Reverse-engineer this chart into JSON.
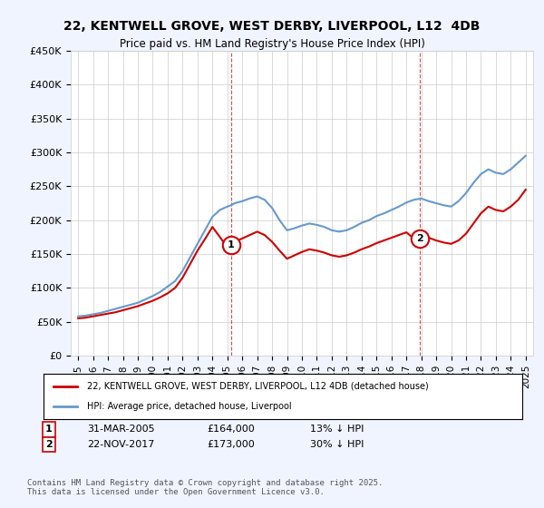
{
  "title": "22, KENTWELL GROVE, WEST DERBY, LIVERPOOL, L12  4DB",
  "subtitle": "Price paid vs. HM Land Registry's House Price Index (HPI)",
  "background_color": "#f0f4ff",
  "plot_background": "#ffffff",
  "red_line_color": "#cc0000",
  "blue_line_color": "#6699cc",
  "ylabel_ticks": [
    "£0",
    "£50K",
    "£100K",
    "£150K",
    "£200K",
    "£250K",
    "£300K",
    "£350K",
    "£400K",
    "£450K"
  ],
  "ytick_vals": [
    0,
    50000,
    100000,
    150000,
    200000,
    250000,
    300000,
    350000,
    400000,
    450000
  ],
  "ylim": [
    0,
    450000
  ],
  "xlim_start": 1994.5,
  "xlim_end": 2025.5,
  "marker1_x": 2005.25,
  "marker1_y": 164000,
  "marker1_label": "1",
  "marker1_date": "31-MAR-2005",
  "marker1_price": "£164,000",
  "marker1_hpi": "13% ↓ HPI",
  "marker2_x": 2017.9,
  "marker2_y": 173000,
  "marker2_label": "2",
  "marker2_date": "22-NOV-2017",
  "marker2_price": "£173,000",
  "marker2_hpi": "30% ↓ HPI",
  "vline1_x": 2005.25,
  "vline2_x": 2017.9,
  "legend_line1": "22, KENTWELL GROVE, WEST DERBY, LIVERPOOL, L12 4DB (detached house)",
  "legend_line2": "HPI: Average price, detached house, Liverpool",
  "footer": "Contains HM Land Registry data © Crown copyright and database right 2025.\nThis data is licensed under the Open Government Licence v3.0.",
  "hpi_blue": {
    "years": [
      1995,
      1995.5,
      1996,
      1996.5,
      1997,
      1997.5,
      1998,
      1998.5,
      1999,
      1999.5,
      2000,
      2000.5,
      2001,
      2001.5,
      2002,
      2002.5,
      2003,
      2003.5,
      2004,
      2004.5,
      2005,
      2005.25,
      2005.5,
      2006,
      2006.5,
      2007,
      2007.5,
      2008,
      2008.5,
      2009,
      2009.5,
      2010,
      2010.5,
      2011,
      2011.5,
      2012,
      2012.5,
      2013,
      2013.5,
      2014,
      2014.5,
      2015,
      2015.5,
      2016,
      2016.5,
      2017,
      2017.5,
      2018,
      2018.5,
      2019,
      2019.5,
      2020,
      2020.5,
      2021,
      2021.5,
      2022,
      2022.5,
      2023,
      2023.5,
      2024,
      2024.5,
      2025
    ],
    "prices": [
      58000,
      59000,
      61000,
      63000,
      66000,
      69000,
      72000,
      75000,
      78000,
      83000,
      88000,
      94000,
      102000,
      110000,
      125000,
      145000,
      165000,
      185000,
      205000,
      215000,
      220000,
      222000,
      225000,
      228000,
      232000,
      235000,
      230000,
      218000,
      200000,
      185000,
      188000,
      192000,
      195000,
      193000,
      190000,
      185000,
      183000,
      185000,
      190000,
      196000,
      200000,
      206000,
      210000,
      215000,
      220000,
      226000,
      230000,
      232000,
      228000,
      225000,
      222000,
      220000,
      228000,
      240000,
      255000,
      268000,
      275000,
      270000,
      268000,
      275000,
      285000,
      295000
    ]
  },
  "hpi_red": {
    "years": [
      1995,
      1995.5,
      1996,
      1996.5,
      1997,
      1997.5,
      1998,
      1998.5,
      1999,
      1999.5,
      2000,
      2000.5,
      2001,
      2001.5,
      2002,
      2002.5,
      2003,
      2003.5,
      2004,
      2004.5,
      2005,
      2005.25,
      2005.5,
      2006,
      2006.5,
      2007,
      2007.5,
      2008,
      2008.5,
      2009,
      2009.5,
      2010,
      2010.5,
      2011,
      2011.5,
      2012,
      2012.5,
      2013,
      2013.5,
      2014,
      2014.5,
      2015,
      2015.5,
      2016,
      2016.5,
      2017,
      2017.5,
      2018,
      2018.5,
      2019,
      2019.5,
      2020,
      2020.5,
      2021,
      2021.5,
      2022,
      2022.5,
      2023,
      2023.5,
      2024,
      2024.5,
      2025
    ],
    "prices": [
      55000,
      56000,
      58000,
      60000,
      62000,
      64000,
      67000,
      70000,
      73000,
      77000,
      81000,
      86000,
      92000,
      100000,
      115000,
      135000,
      155000,
      172000,
      190000,
      175000,
      160000,
      164000,
      168000,
      173000,
      178000,
      183000,
      178000,
      168000,
      155000,
      143000,
      148000,
      153000,
      157000,
      155000,
      152000,
      148000,
      146000,
      148000,
      152000,
      157000,
      161000,
      166000,
      170000,
      174000,
      178000,
      182000,
      173000,
      178000,
      174000,
      170000,
      167000,
      165000,
      170000,
      180000,
      195000,
      210000,
      220000,
      215000,
      213000,
      220000,
      230000,
      245000
    ]
  }
}
